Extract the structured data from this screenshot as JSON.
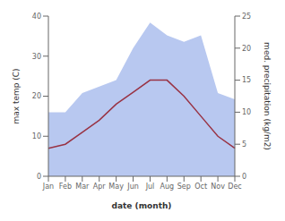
{
  "chart_data": {
    "type": "line",
    "xlabel": "date (month)",
    "ylabel": "max temp (C)",
    "y2label": "med. precipitation (kg/m2)",
    "categories": [
      "Jan",
      "Feb",
      "Mar",
      "Apr",
      "May",
      "Jun",
      "Jul",
      "Aug",
      "Sep",
      "Oct",
      "Nov",
      "Dec"
    ],
    "series": [
      {
        "name": "med. precipitation (kg/m2)",
        "type": "area",
        "axis": "y2",
        "color": "#b8c8f0",
        "values": [
          10,
          10,
          13,
          14,
          15,
          20,
          24,
          22,
          21,
          22,
          13,
          12
        ]
      },
      {
        "name": "max temp (C)",
        "type": "line",
        "color": "#993344",
        "values": [
          7,
          8,
          11,
          14,
          18,
          21,
          24,
          24,
          20,
          15,
          10,
          7
        ]
      }
    ],
    "ylim": [
      0,
      40
    ],
    "yticks": [
      0,
      10,
      20,
      30,
      40
    ],
    "y2lim": [
      0,
      25
    ],
    "y2ticks": [
      0,
      5,
      10,
      15,
      20,
      25
    ]
  }
}
